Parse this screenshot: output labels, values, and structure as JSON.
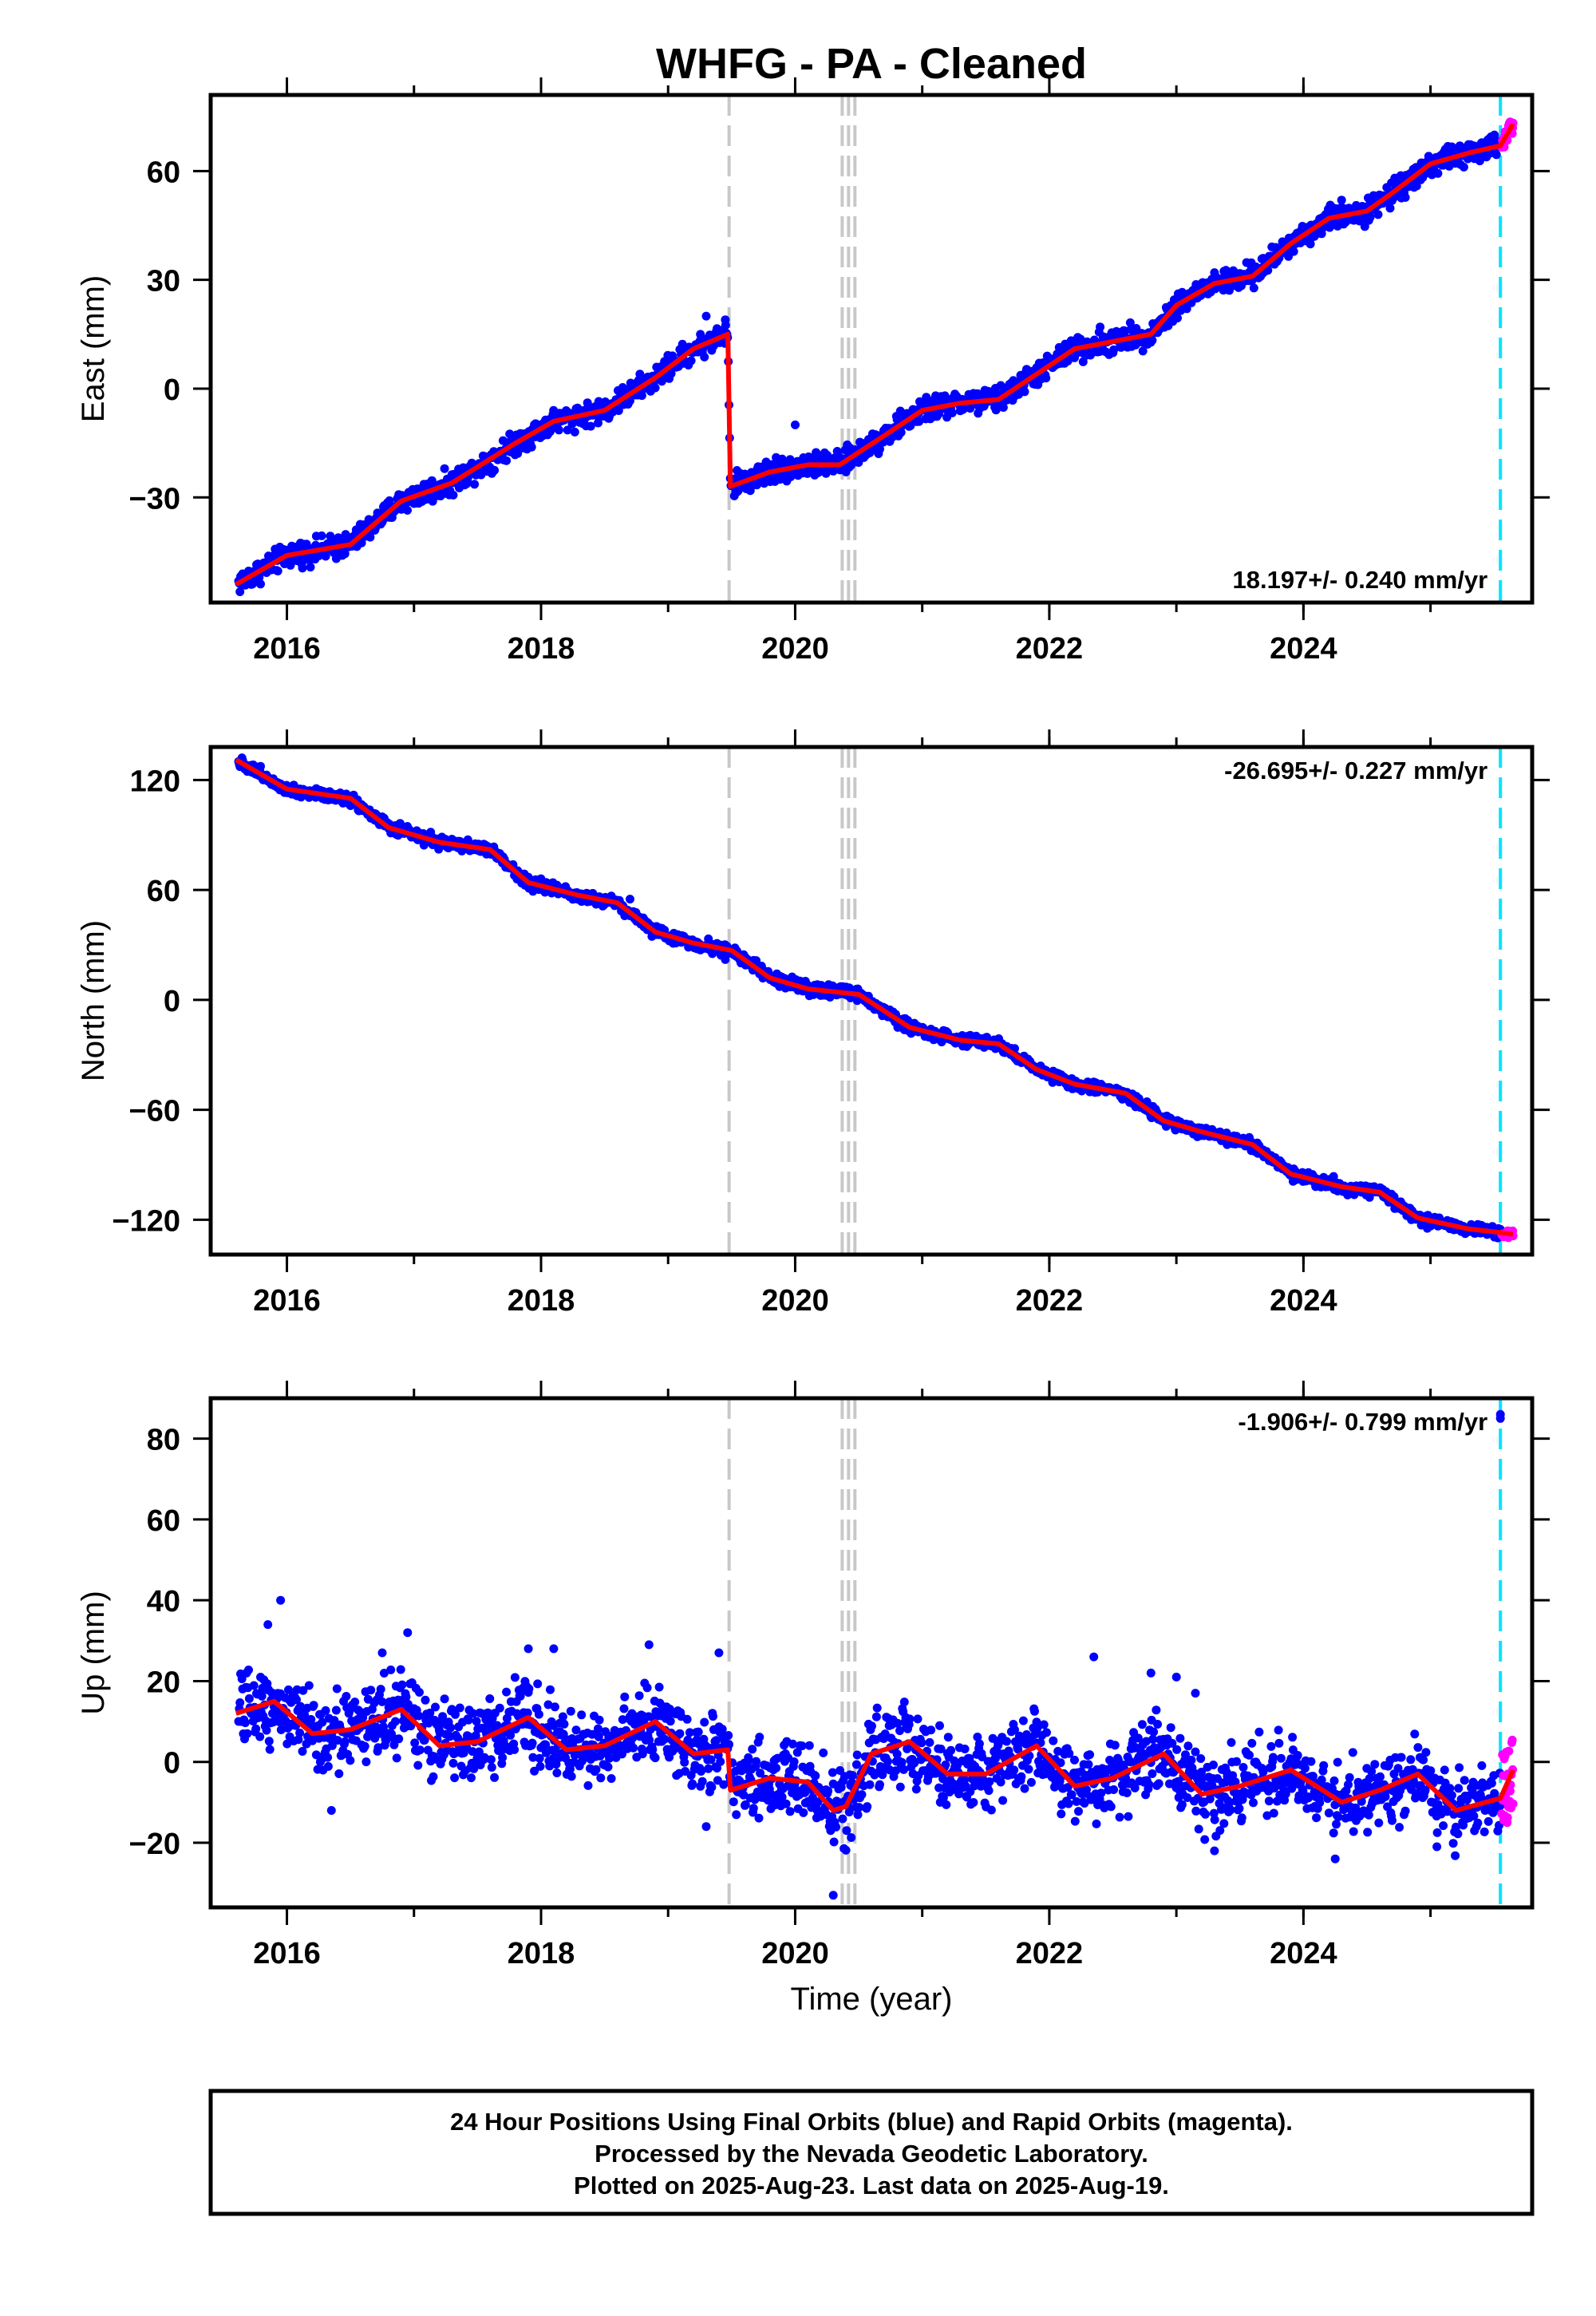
{
  "title": "WHFG  - PA - Cleaned",
  "xlabel": "Time (year)",
  "caption": [
    "24 Hour Positions Using Final Orbits (blue) and Rapid Orbits (magenta).",
    "Processed by the Nevada Geodetic Laboratory.",
    "Plotted on 2025-Aug-23. Last data on 2025-Aug-19."
  ],
  "colors": {
    "final": "#0000ff",
    "rapid": "#ff00ff",
    "model": "#ff0000",
    "event": "#c8c8c8",
    "last": "#00e5ff"
  },
  "chart_data": [
    {
      "type": "scatter",
      "ylabel": "East (mm)",
      "rate": "18.197+/- 0.240 mm/yr",
      "xlim": [
        2015.4,
        2025.8
      ],
      "ylim": [
        -59,
        81
      ],
      "yticks": [
        "60",
        "30",
        "0",
        "−30"
      ],
      "xticks": [
        "2016",
        "2018",
        "2020",
        "2022",
        "2024"
      ],
      "events": [
        2019.48,
        2020.37,
        2020.42,
        2020.47
      ],
      "last_data": 2025.55,
      "series": [
        {
          "x": [
            2015.6,
            2016.0,
            2016.5,
            2016.9,
            2017.3,
            2017.8,
            2018.1,
            2018.5,
            2018.9,
            2019.2,
            2019.47,
            2019.49,
            2019.8,
            2020.1,
            2020.35,
            2020.7,
            2021.0,
            2021.3,
            2021.6,
            2021.9,
            2022.2,
            2022.5,
            2022.8,
            2023.0,
            2023.3,
            2023.6,
            2023.9,
            2024.2,
            2024.5,
            2024.7,
            2025.0,
            2025.3,
            2025.55,
            2025.65
          ],
          "y": [
            -54,
            -46,
            -43,
            -31,
            -26,
            -15,
            -9,
            -6,
            3,
            11,
            15,
            -27,
            -23,
            -21,
            -21,
            -13,
            -6,
            -4,
            -3,
            4,
            11,
            13,
            15,
            23,
            29,
            31,
            40,
            47,
            49,
            54,
            62,
            65,
            67,
            73
          ]
        }
      ]
    },
    {
      "type": "scatter",
      "ylabel": "North (mm)",
      "rate": "-26.695+/- 0.227 mm/yr",
      "xlim": [
        2015.4,
        2025.8
      ],
      "ylim": [
        -139,
        138
      ],
      "yticks": [
        "120",
        "60",
        "0",
        "−60",
        "−120"
      ],
      "xticks": [
        "2016",
        "2018",
        "2020",
        "2022",
        "2024"
      ],
      "events": [
        2019.48,
        2020.37,
        2020.42,
        2020.47
      ],
      "last_data": 2025.55,
      "series": [
        {
          "x": [
            2015.6,
            2016.0,
            2016.5,
            2016.8,
            2017.2,
            2017.6,
            2017.9,
            2018.3,
            2018.6,
            2018.9,
            2019.2,
            2019.5,
            2019.8,
            2020.1,
            2020.5,
            2020.9,
            2021.3,
            2021.6,
            2021.9,
            2022.2,
            2022.6,
            2022.9,
            2023.2,
            2023.6,
            2023.9,
            2024.3,
            2024.6,
            2024.9,
            2025.3,
            2025.55,
            2025.65
          ],
          "y": [
            131,
            115,
            110,
            94,
            86,
            82,
            64,
            57,
            53,
            37,
            31,
            27,
            12,
            6,
            3,
            -15,
            -22,
            -24,
            -38,
            -46,
            -51,
            -66,
            -72,
            -79,
            -95,
            -102,
            -105,
            -119,
            -125,
            -127,
            -128
          ]
        }
      ]
    },
    {
      "type": "scatter",
      "ylabel": "Up (mm)",
      "rate": "-1.906+/- 0.799 mm/yr",
      "xlim": [
        2015.4,
        2025.8
      ],
      "ylim": [
        -36,
        90
      ],
      "yticks": [
        "80",
        "60",
        "40",
        "20",
        "0",
        "−20"
      ],
      "xticks": [
        "2016",
        "2018",
        "2020",
        "2022",
        "2024"
      ],
      "events": [
        2019.48,
        2020.37,
        2020.42,
        2020.47
      ],
      "last_data": 2025.55,
      "series": [
        {
          "x": [
            2015.6,
            2015.9,
            2016.2,
            2016.5,
            2016.9,
            2017.2,
            2017.5,
            2017.9,
            2018.2,
            2018.5,
            2018.9,
            2019.2,
            2019.47,
            2019.49,
            2019.8,
            2020.1,
            2020.3,
            2020.4,
            2020.6,
            2020.9,
            2021.2,
            2021.5,
            2021.9,
            2022.2,
            2022.5,
            2022.9,
            2023.2,
            2023.5,
            2023.9,
            2024.3,
            2024.6,
            2024.9,
            2025.2,
            2025.55,
            2025.65
          ],
          "y": [
            12,
            15,
            7,
            8,
            13,
            4,
            5,
            11,
            3,
            4,
            10,
            2,
            3,
            -7,
            -4,
            -5,
            -12,
            -11,
            2,
            5,
            -3,
            -3,
            4,
            -6,
            -4,
            2,
            -8,
            -6,
            -2,
            -10,
            -7,
            -3,
            -12,
            -9,
            -2
          ]
        }
      ]
    }
  ]
}
